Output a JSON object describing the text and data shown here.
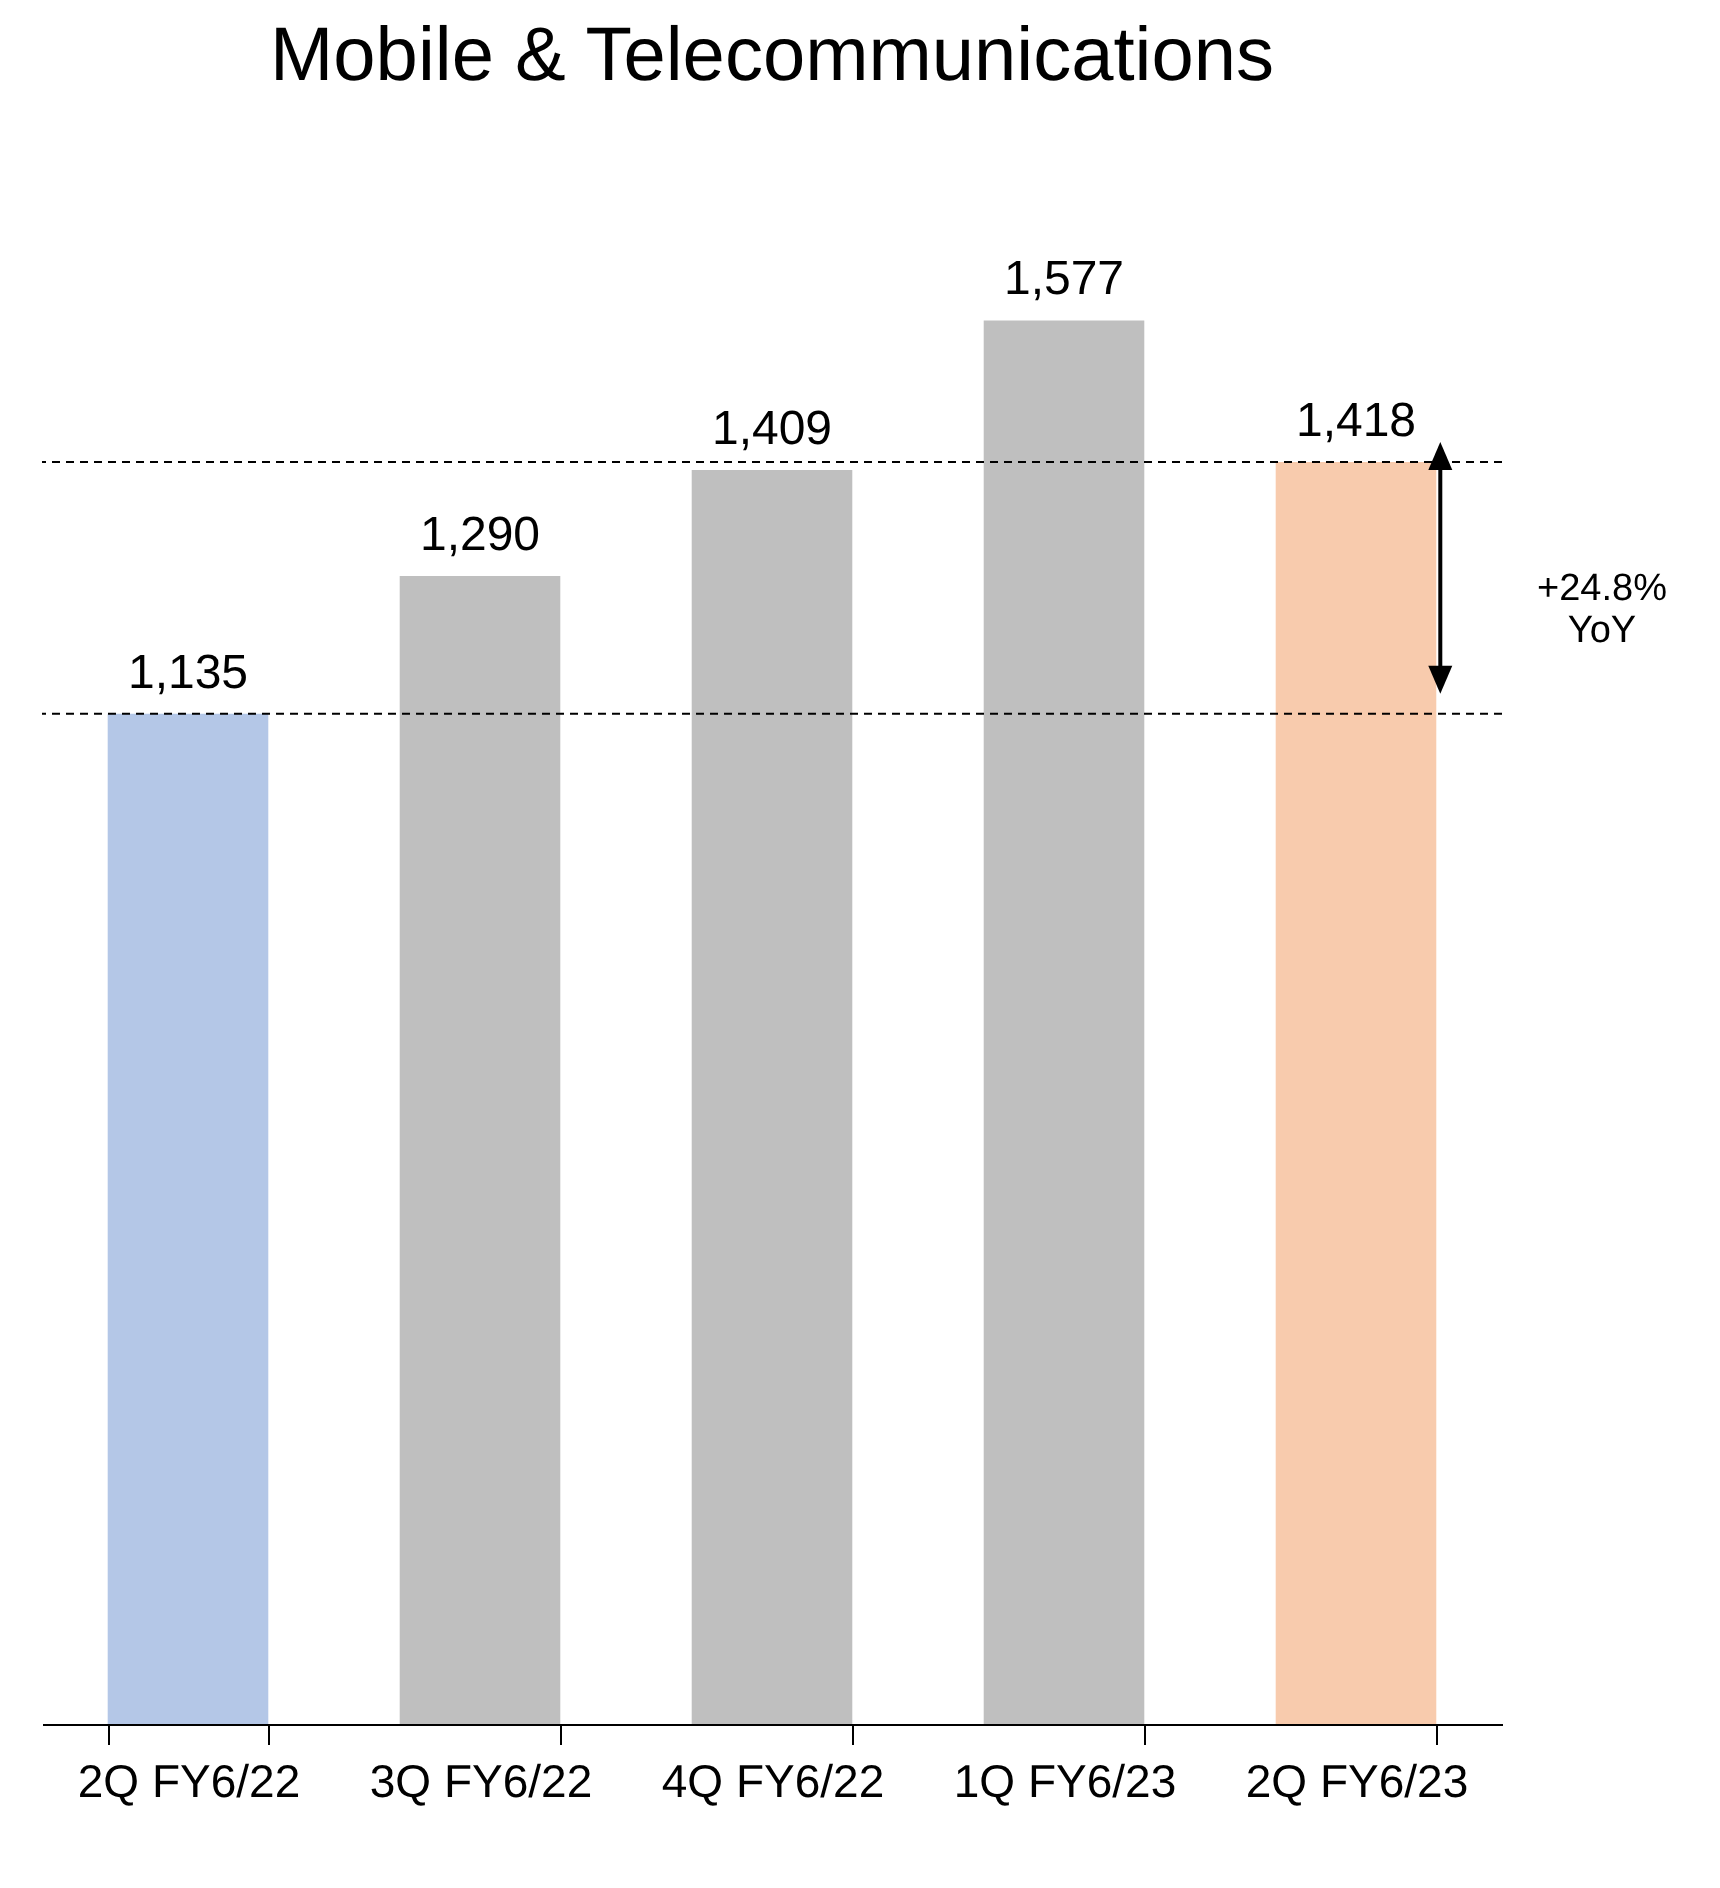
{
  "chart_data": {
    "type": "bar",
    "title": "Mobile & Telecommunications",
    "categories": [
      "2Q FY6/22",
      "3Q FY6/22",
      "4Q FY6/22",
      "1Q FY6/23",
      "2Q FY6/23"
    ],
    "values": [
      1135,
      1290,
      1409,
      1577,
      1418
    ],
    "colors": [
      "#b4c7e7",
      "#bfbfbf",
      "#bfbfbf",
      "#bfbfbf",
      "#f8cbad"
    ],
    "value_labels": [
      "1,135",
      "1,290",
      "1,409",
      "1,577",
      "1,418"
    ],
    "ref_lines": [
      {
        "axis": "y",
        "value": 1135,
        "line_style": "dashed",
        "color": "#000000"
      },
      {
        "axis": "y",
        "value": 1418,
        "line_style": "dashed",
        "color": "#000000"
      }
    ],
    "annotations": [
      "+24.8% YoY"
    ]
  }
}
